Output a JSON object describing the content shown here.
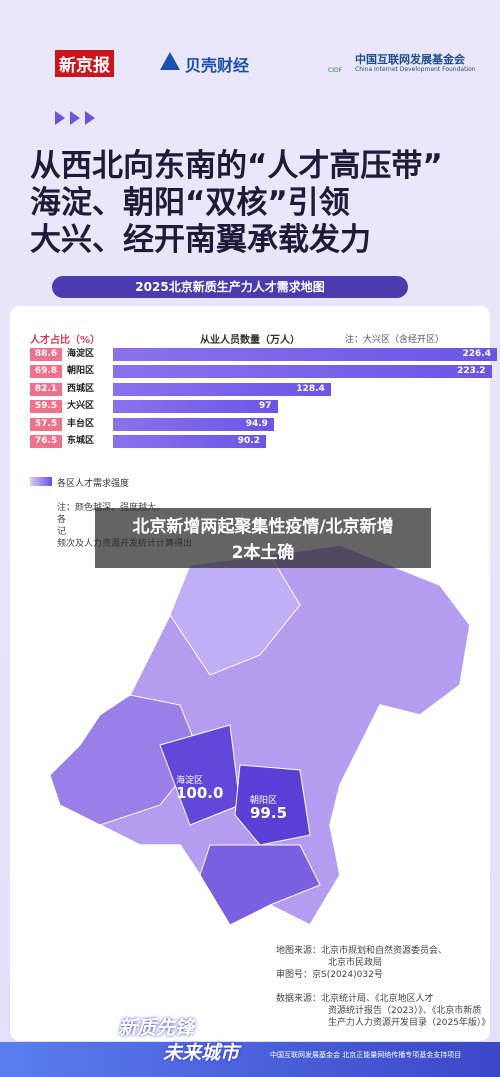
{
  "header": {
    "logo_left": "新京报",
    "logo_middle": "贝壳财经",
    "logo_right_cn": "中国互联网发展基金会",
    "logo_right_en": "China Internet Development Foundation",
    "logo_right_abbr": "CIDF"
  },
  "title": [
    "从西北向东南的“人才高压带”",
    "海淀、朝阳“双核”引领",
    "大兴、经开南翼承载发力"
  ],
  "banner": "2025北京新质生产力人才需求地图",
  "chart_data": {
    "type": "bar",
    "ratio_label": "人才占比（%）",
    "count_label": "从业人员数量（万人）",
    "note": "注：大兴区（含经开区）",
    "categories": [
      "海淀区",
      "朝阳区",
      "西城区",
      "大兴区",
      "丰台区",
      "东城区"
    ],
    "ratios": [
      88.6,
      69.8,
      82.1,
      59.5,
      57.5,
      76.5
    ],
    "values": [
      226.4,
      223.2,
      128.4,
      97,
      94.9,
      90.2
    ],
    "color": "#6b55e6"
  },
  "legend": "各区人才需求强度",
  "notes": [
    "注：颜色越深，强度越大。",
    "各",
    "记",
    "频次及人力资源开发统计计算得出"
  ],
  "overlay": [
    "北京新增两起聚集性疫情/北京新增",
    "2本土确"
  ],
  "map": {
    "districts": [
      {
        "name": "海淀区",
        "value": "100.0"
      },
      {
        "name": "朝阳区",
        "value": "99.5"
      }
    ]
  },
  "sources": [
    "地图来源：北京市规划和自然资源委员会、",
    "北京市民政局",
    "审图号：京S(2024)032号",
    "数据来源：北京统计局、《北京地区人才",
    "资源统计报告（2023）》、《北京市新质",
    "生产力人力资源开发目录（2025年版）》"
  ],
  "badge": {
    "top": "2025中国向上",
    "line1": "新质先锋",
    "line2": "未来城市"
  },
  "footer": "中国互联网发展基金会 北京正能量网络传播专项基金支持项目"
}
